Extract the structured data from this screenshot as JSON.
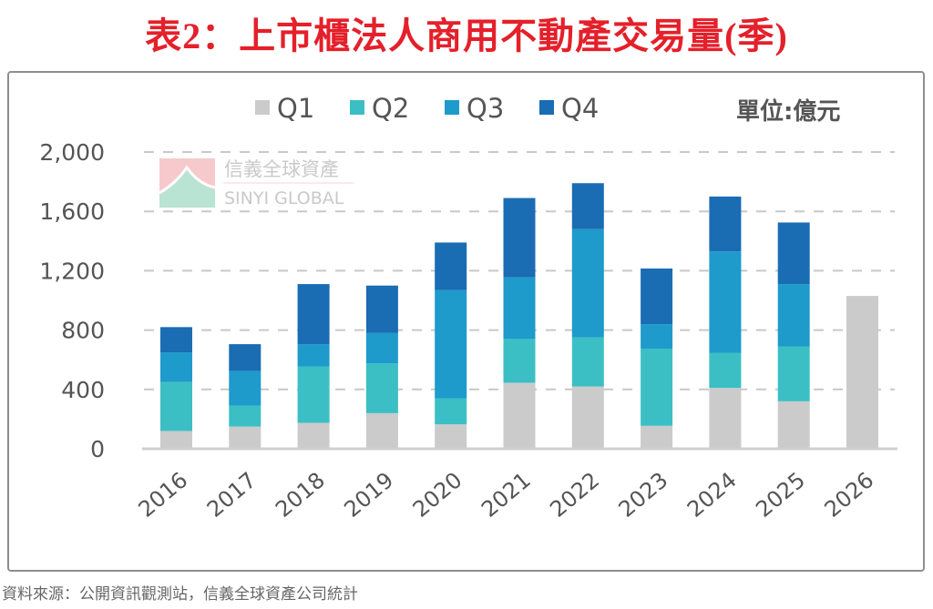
{
  "title": "表2：上市櫃法人商用不動產交易量(季)",
  "source": "資料來源：公開資訊觀測站，信義全球資產公司統計",
  "watermark": {
    "name_cn": "信義全球資產",
    "name_en": "SINYI GLOBAL",
    "logo_colors": [
      "#f6c9cd",
      "#b9e3d3"
    ]
  },
  "chart_data": {
    "type": "bar",
    "stacked": true,
    "title": "表2：上市櫃法人商用不動產交易量(季)",
    "unit_label": "單位:億元",
    "xlabel": "",
    "ylabel": "",
    "ylim": [
      0,
      2000
    ],
    "yticks": [
      0,
      400,
      800,
      1200,
      1600,
      2000
    ],
    "ytick_labels": [
      "0",
      "400",
      "800",
      "1,200",
      "1,600",
      "2,000"
    ],
    "grid": true,
    "legend_position": "top",
    "categories": [
      "2016",
      "2017",
      "2018",
      "2019",
      "2020",
      "2021",
      "2022",
      "2023",
      "2024",
      "2025",
      "2026"
    ],
    "series": [
      {
        "name": "Q1",
        "color": "#cbcbcc",
        "values": [
          120,
          150,
          175,
          240,
          165,
          445,
          420,
          155,
          410,
          320,
          1030
        ]
      },
      {
        "name": "Q2",
        "color": "#3bbfc4",
        "values": [
          330,
          140,
          380,
          335,
          175,
          295,
          330,
          520,
          235,
          370,
          0
        ]
      },
      {
        "name": "Q3",
        "color": "#1e9acb",
        "values": [
          200,
          235,
          150,
          205,
          730,
          415,
          730,
          165,
          685,
          420,
          0
        ]
      },
      {
        "name": "Q4",
        "color": "#1a6cb3",
        "values": [
          170,
          180,
          405,
          320,
          320,
          535,
          310,
          375,
          370,
          415,
          0
        ]
      }
    ]
  }
}
